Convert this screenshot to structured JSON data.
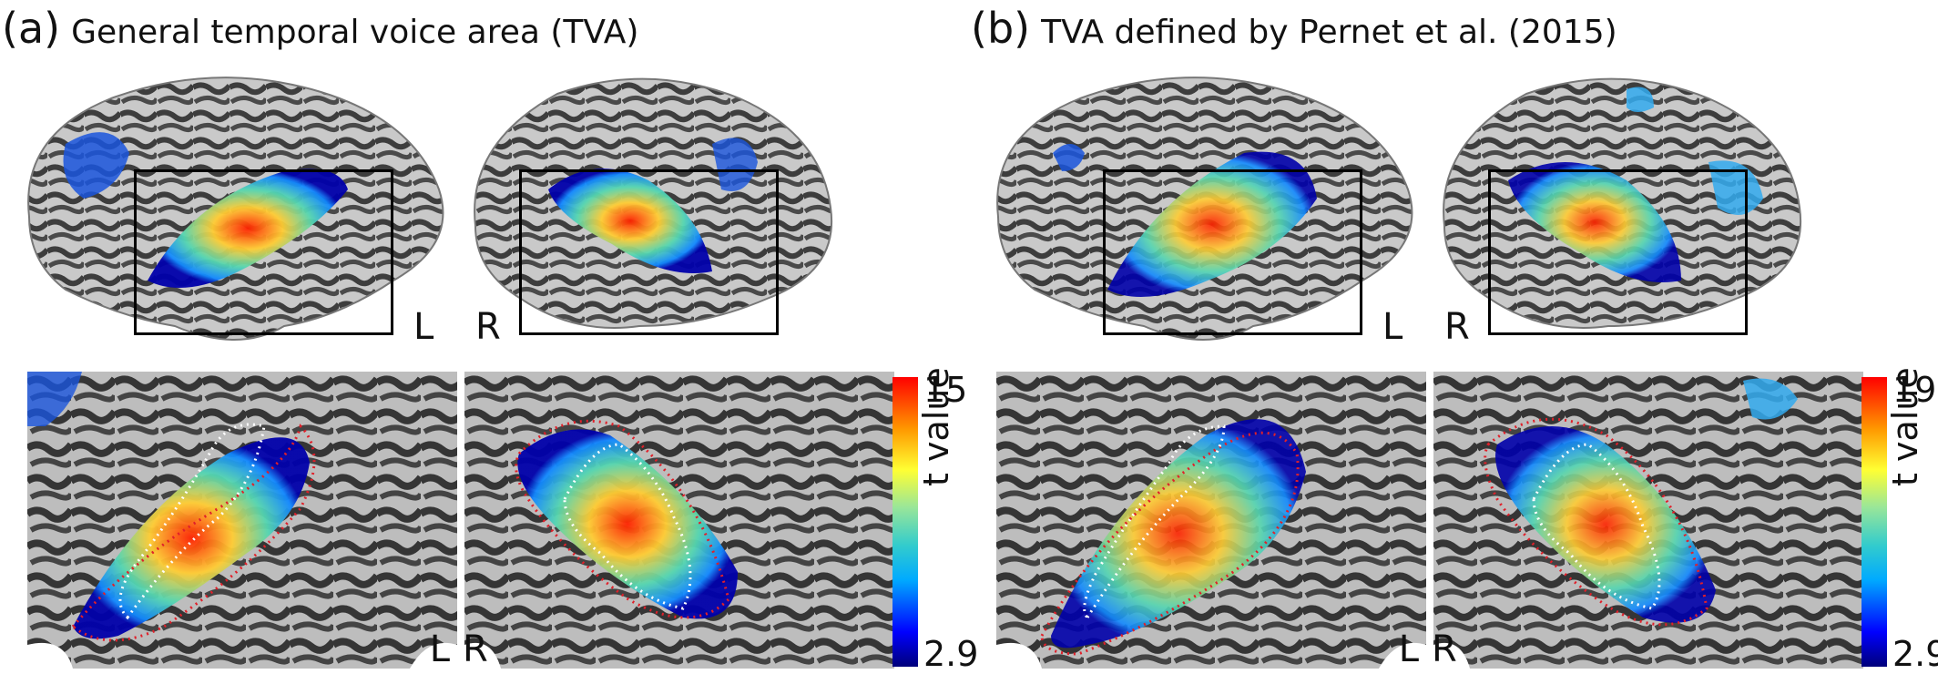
{
  "panels": [
    {
      "letter": "(a)",
      "title": "General temporal voice area (TVA)",
      "hemisphere_labels": [
        "L",
        "R"
      ],
      "zoom_labels": [
        "L",
        "R"
      ],
      "colorbar": {
        "title": "t value",
        "max": "15",
        "min": "2.9"
      }
    },
    {
      "letter": "(b)",
      "title": "TVA defined by Pernet et al. (2015)",
      "hemisphere_labels": [
        "L",
        "R"
      ],
      "zoom_labels": [
        "L",
        "R"
      ],
      "colorbar": {
        "title": "t value",
        "max": "19",
        "min": "2.9"
      }
    }
  ],
  "colors": {
    "outline_red": "#e0202a",
    "outline_white": "#ffffff",
    "brain_light": "#c8c8c8",
    "brain_dark": "#3a3a3a"
  }
}
